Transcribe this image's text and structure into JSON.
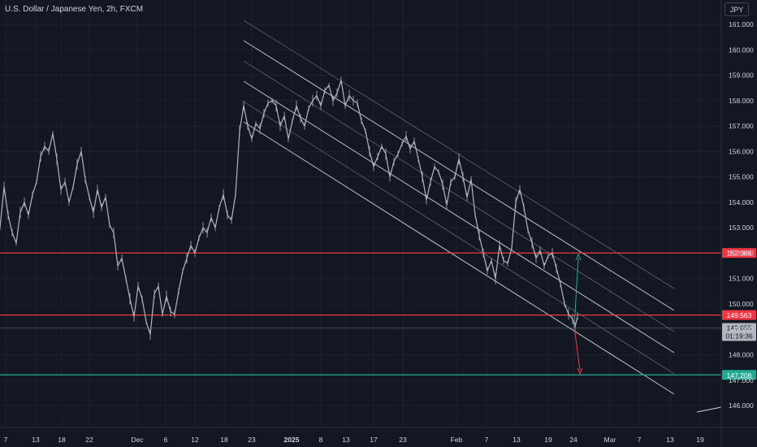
{
  "header": {
    "title": "U.S. Dollar / Japanese Yen, 2h, FXCM"
  },
  "currency_button": "JPY",
  "colors": {
    "background": "#131722",
    "price": "#b2b5be",
    "grid": "#1e222d",
    "resistance": "#f23645",
    "support": "#22ab94",
    "channel": "#d1d4dc",
    "label_current": "#b2b5be"
  },
  "chart_data": {
    "type": "line",
    "title": "U.S. Dollar / Japanese Yen, 2h, FXCM",
    "ylim": [
      145.6,
      161.5
    ],
    "yticks": [
      "146.000",
      "147.000",
      "148.000",
      "149.000",
      "150.000",
      "151.000",
      "152.000",
      "153.000",
      "154.000",
      "155.000",
      "156.000",
      "157.000",
      "158.000",
      "159.000",
      "160.000",
      "161.000"
    ],
    "xticks": [
      "7",
      "13",
      "18",
      "22",
      "Dec",
      "6",
      "12",
      "18",
      "23",
      "2025",
      "8",
      "13",
      "17",
      "23",
      "Feb",
      "7",
      "13",
      "19",
      "24",
      "Mar",
      "7",
      "13",
      "19"
    ],
    "xtick_bold": [
      "2025"
    ],
    "grid": true,
    "series": [
      {
        "kind": "price",
        "values": [
          [
            0,
            153.0
          ],
          [
            5,
            154.6
          ],
          [
            10,
            153.5
          ],
          [
            15,
            152.8
          ],
          [
            20,
            152.4
          ],
          [
            25,
            153.6
          ],
          [
            30,
            154.0
          ],
          [
            35,
            153.5
          ],
          [
            40,
            154.3
          ],
          [
            45,
            154.8
          ],
          [
            50,
            155.8
          ],
          [
            55,
            156.2
          ],
          [
            60,
            156.0
          ],
          [
            65,
            156.7
          ],
          [
            70,
            155.7
          ],
          [
            75,
            154.5
          ],
          [
            80,
            154.8
          ],
          [
            85,
            154.0
          ],
          [
            90,
            154.6
          ],
          [
            95,
            155.5
          ],
          [
            100,
            156.0
          ],
          [
            105,
            154.9
          ],
          [
            110,
            154.2
          ],
          [
            115,
            153.6
          ],
          [
            120,
            154.5
          ],
          [
            125,
            153.8
          ],
          [
            130,
            154.2
          ],
          [
            135,
            153.1
          ],
          [
            140,
            152.8
          ],
          [
            145,
            151.5
          ],
          [
            150,
            151.8
          ],
          [
            155,
            151.0
          ],
          [
            160,
            150.2
          ],
          [
            165,
            149.5
          ],
          [
            170,
            150.7
          ],
          [
            175,
            150.2
          ],
          [
            180,
            149.3
          ],
          [
            185,
            148.8
          ],
          [
            190,
            150.4
          ],
          [
            195,
            150.7
          ],
          [
            200,
            149.6
          ],
          [
            205,
            150.3
          ],
          [
            210,
            149.7
          ],
          [
            215,
            149.6
          ],
          [
            220,
            150.5
          ],
          [
            225,
            151.3
          ],
          [
            230,
            151.8
          ],
          [
            235,
            152.3
          ],
          [
            240,
            152.0
          ],
          [
            245,
            152.6
          ],
          [
            250,
            153.0
          ],
          [
            255,
            152.8
          ],
          [
            260,
            153.4
          ],
          [
            265,
            153.0
          ],
          [
            270,
            153.8
          ],
          [
            275,
            154.3
          ],
          [
            280,
            153.5
          ],
          [
            285,
            153.3
          ],
          [
            290,
            154.3
          ],
          [
            295,
            156.8
          ],
          [
            300,
            157.8
          ],
          [
            305,
            157.0
          ],
          [
            310,
            156.5
          ],
          [
            315,
            157.1
          ],
          [
            320,
            156.9
          ],
          [
            325,
            157.5
          ],
          [
            330,
            157.9
          ],
          [
            335,
            158.0
          ],
          [
            340,
            157.8
          ],
          [
            345,
            157.0
          ],
          [
            350,
            157.4
          ],
          [
            355,
            156.5
          ],
          [
            360,
            157.2
          ],
          [
            365,
            157.8
          ],
          [
            370,
            157.3
          ],
          [
            375,
            157.0
          ],
          [
            380,
            157.7
          ],
          [
            385,
            158.0
          ],
          [
            390,
            158.2
          ],
          [
            395,
            157.8
          ],
          [
            400,
            158.4
          ],
          [
            405,
            158.6
          ],
          [
            410,
            158.0
          ],
          [
            415,
            158.3
          ],
          [
            420,
            158.8
          ],
          [
            425,
            157.8
          ],
          [
            430,
            158.2
          ],
          [
            435,
            158.0
          ],
          [
            440,
            157.9
          ],
          [
            445,
            157.2
          ],
          [
            450,
            156.8
          ],
          [
            455,
            156.0
          ],
          [
            460,
            155.4
          ],
          [
            465,
            155.8
          ],
          [
            470,
            156.2
          ],
          [
            475,
            155.9
          ],
          [
            480,
            155.0
          ],
          [
            485,
            155.6
          ],
          [
            490,
            155.9
          ],
          [
            495,
            156.3
          ],
          [
            500,
            156.6
          ],
          [
            505,
            156.1
          ],
          [
            510,
            156.4
          ],
          [
            515,
            155.7
          ],
          [
            520,
            155.0
          ],
          [
            525,
            154.1
          ],
          [
            530,
            154.8
          ],
          [
            535,
            155.4
          ],
          [
            540,
            155.2
          ],
          [
            545,
            154.7
          ],
          [
            550,
            153.9
          ],
          [
            555,
            154.8
          ],
          [
            560,
            155.0
          ],
          [
            565,
            155.7
          ],
          [
            570,
            155.0
          ],
          [
            575,
            154.2
          ],
          [
            580,
            154.9
          ],
          [
            585,
            153.5
          ],
          [
            590,
            152.7
          ],
          [
            595,
            152.0
          ],
          [
            600,
            151.3
          ],
          [
            605,
            151.7
          ],
          [
            610,
            151.0
          ],
          [
            615,
            152.3
          ],
          [
            620,
            151.7
          ],
          [
            625,
            151.6
          ],
          [
            630,
            152.2
          ],
          [
            635,
            154.0
          ],
          [
            640,
            154.5
          ],
          [
            645,
            153.8
          ],
          [
            650,
            152.9
          ],
          [
            655,
            152.4
          ],
          [
            660,
            151.8
          ],
          [
            665,
            152.1
          ],
          [
            670,
            151.5
          ],
          [
            675,
            151.9
          ],
          [
            680,
            152.0
          ],
          [
            685,
            151.4
          ],
          [
            690,
            150.8
          ],
          [
            695,
            150.0
          ],
          [
            700,
            149.6
          ],
          [
            705,
            149.4
          ],
          [
            708,
            149.1
          ],
          [
            711,
            149.5
          ]
        ]
      },
      {
        "kind": "hline",
        "value": 152.006,
        "label": "152.006",
        "color": "red"
      },
      {
        "kind": "hline",
        "value": 149.563,
        "label": "149.563",
        "color": "red"
      },
      {
        "kind": "hline",
        "value": 147.208,
        "label": "147.208",
        "color": "green"
      },
      {
        "kind": "current",
        "value": 149.055,
        "label": "149.055",
        "countdown": "01:19:36"
      }
    ]
  }
}
